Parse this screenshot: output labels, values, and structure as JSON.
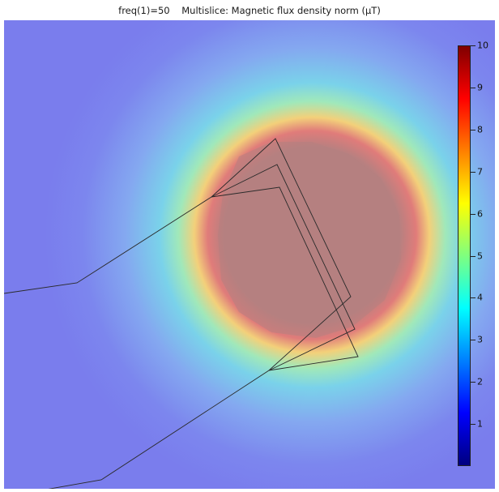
{
  "plot": {
    "title_prefix": "freq(1)=50",
    "title_main": "Multislice: Magnetic flux density norm (µT)"
  },
  "colorbar": {
    "min": 0,
    "max": 10,
    "tick_labels": [
      "10",
      "9",
      "8",
      "7",
      "6",
      "5",
      "4",
      "3",
      "2",
      "1"
    ],
    "colors": [
      "#00007f",
      "#0000ff",
      "#007fff",
      "#00ffff",
      "#7fff7f",
      "#ffff00",
      "#ff7f00",
      "#ff0000",
      "#7f0000"
    ]
  },
  "colors": {
    "background_low": "#7b7fee",
    "core_high": "#b47f7f",
    "outline": "#2a2a2a"
  }
}
